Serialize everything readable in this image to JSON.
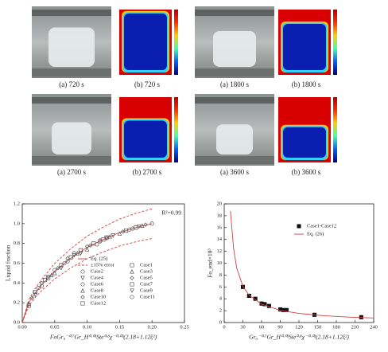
{
  "figure": {
    "panels": [
      "(a) 720 s",
      "(b) 720 s",
      "(a) 1800 s",
      "(b) 1800 s",
      "(a) 2700 s",
      "(b) 2700 s",
      "(a) 3600 s",
      "(b) 3600 s"
    ]
  },
  "chart_data": [
    {
      "type": "line",
      "xlabel": "FoGr₀⁻⁰·⁷Gr_H⁰·⁰³Ste⁰·⁸χ⁻⁰·⁰³(2.18+1.12ξ²)",
      "ylabel": "Liquid fraction",
      "annotation": "R²=0.99",
      "xlim": [
        0,
        0.25
      ],
      "xticks": [
        {
          "value": 0,
          "label": "0.00"
        },
        0.05,
        {
          "value": 0.1,
          "label": "0.10"
        },
        0.15,
        {
          "value": 0.2,
          "label": "0.20"
        },
        0.25
      ],
      "ylim": [
        0,
        1.2
      ],
      "yticks": [
        {
          "value": 0,
          "label": "0.0"
        },
        0.2,
        0.4,
        0.6,
        0.8,
        {
          "value": 1,
          "label": "1.0"
        },
        1.2
      ],
      "legend": "lower right",
      "series": [
        {
          "name": "Eq. (25)",
          "color": "#d04040",
          "x": [
            0,
            0.01,
            0.02,
            0.03,
            0.05,
            0.075,
            0.1,
            0.125,
            0.15,
            0.175,
            0.2
          ],
          "values": [
            0,
            0.2,
            0.3,
            0.38,
            0.52,
            0.65,
            0.76,
            0.84,
            0.91,
            0.96,
            1.0
          ]
        },
        {
          "name": "±15% error",
          "color": "#d04040",
          "dash": true,
          "x": [
            0,
            0.01,
            0.02,
            0.03,
            0.05,
            0.075,
            0.1,
            0.125,
            0.15,
            0.175,
            0.2
          ],
          "values": [
            0,
            0.23,
            0.345,
            0.437,
            0.598,
            0.748,
            0.874,
            0.966,
            1.047,
            1.104,
            1.15
          ],
          "lower": [
            0,
            0.17,
            0.255,
            0.323,
            0.442,
            0.553,
            0.646,
            0.714,
            0.774,
            0.816,
            0.85
          ]
        },
        {
          "name": "Case1",
          "marker": "square",
          "color": "#555",
          "x": [
            0.02,
            0.06,
            0.11,
            0.16
          ],
          "values": [
            0.31,
            0.58,
            0.8,
            0.93
          ]
        },
        {
          "name": "Case2",
          "marker": "circle",
          "color": "#555",
          "x": [
            0.03,
            0.07,
            0.12,
            0.17
          ],
          "values": [
            0.37,
            0.62,
            0.82,
            0.95
          ]
        },
        {
          "name": "Case3",
          "marker": "triangle",
          "color": "#555",
          "x": [
            0.01,
            0.05,
            0.1,
            0.15
          ],
          "values": [
            0.19,
            0.5,
            0.74,
            0.9
          ]
        },
        {
          "name": "Case4",
          "marker": "down",
          "color": "#555",
          "x": [
            0.04,
            0.08,
            0.13,
            0.18
          ],
          "values": [
            0.46,
            0.68,
            0.85,
            0.97
          ]
        },
        {
          "name": "Case5",
          "marker": "diamond",
          "color": "#555",
          "x": [
            0.015,
            0.055,
            0.105,
            0.155
          ],
          "values": [
            0.25,
            0.55,
            0.78,
            0.92
          ]
        },
        {
          "name": "Case6",
          "marker": "circle",
          "color": "#555",
          "x": [
            0.025,
            0.065,
            0.115,
            0.165
          ],
          "values": [
            0.35,
            0.6,
            0.79,
            0.94
          ]
        },
        {
          "name": "Case7",
          "marker": "square",
          "color": "#555",
          "x": [
            0.035,
            0.075,
            0.125,
            0.175
          ],
          "values": [
            0.43,
            0.66,
            0.84,
            0.96
          ]
        },
        {
          "name": "Case8",
          "marker": "triangle",
          "color": "#555",
          "x": [
            0.045,
            0.085,
            0.135,
            0.185
          ],
          "values": [
            0.48,
            0.7,
            0.87,
            0.98
          ]
        },
        {
          "name": "Case9",
          "marker": "down",
          "color": "#555",
          "x": [
            0.02,
            0.06,
            0.09,
            0.14
          ],
          "values": [
            0.28,
            0.55,
            0.7,
            0.88
          ]
        },
        {
          "name": "Case10",
          "marker": "diamond",
          "color": "#555",
          "x": [
            0.03,
            0.07,
            0.1,
            0.19
          ],
          "values": [
            0.4,
            0.65,
            0.77,
            0.99
          ]
        },
        {
          "name": "Case11",
          "marker": "circle",
          "color": "#555",
          "x": [
            0.05,
            0.08,
            0.12,
            0.2
          ],
          "values": [
            0.53,
            0.7,
            0.83,
            1.0
          ]
        },
        {
          "name": "Case12",
          "marker": "square",
          "color": "#555",
          "x": [
            0.01,
            0.04,
            0.09,
            0.13
          ],
          "values": [
            0.17,
            0.45,
            0.73,
            0.86
          ]
        }
      ]
    },
    {
      "type": "line",
      "xlabel": "Gr₀⁻⁰·⁷Gr_H⁰·⁰³Ste⁰·⁸χ⁻⁰·⁰³(2.18+1.12ξ²)",
      "ylabel": "Fo_end×10³",
      "xlim": [
        0,
        240
      ],
      "xticks": [
        0,
        30,
        60,
        90,
        120,
        150,
        180,
        210,
        240
      ],
      "ylim": [
        0,
        20
      ],
      "yticks": [
        0,
        2,
        4,
        6,
        8,
        10,
        12,
        14,
        16,
        18,
        20
      ],
      "legend": "upper right",
      "series": [
        {
          "name": "Case1-Case12",
          "marker": "square",
          "filled": true,
          "color": "#111",
          "x": [
            30,
            40,
            50,
            60,
            65,
            72,
            90,
            95,
            100,
            145,
            220
          ],
          "values": [
            6.0,
            4.5,
            4.0,
            3.2,
            3.1,
            2.8,
            2.2,
            2.1,
            2.1,
            1.3,
            0.9
          ]
        },
        {
          "name": "Eq. (26)",
          "color": "#d04040",
          "x": [
            10,
            15,
            20,
            30,
            40,
            60,
            90,
            120,
            160,
            200,
            240
          ],
          "values": [
            18.8,
            12.5,
            9.2,
            6.1,
            4.6,
            3.1,
            2.05,
            1.54,
            1.15,
            0.92,
            0.77
          ]
        }
      ]
    }
  ]
}
